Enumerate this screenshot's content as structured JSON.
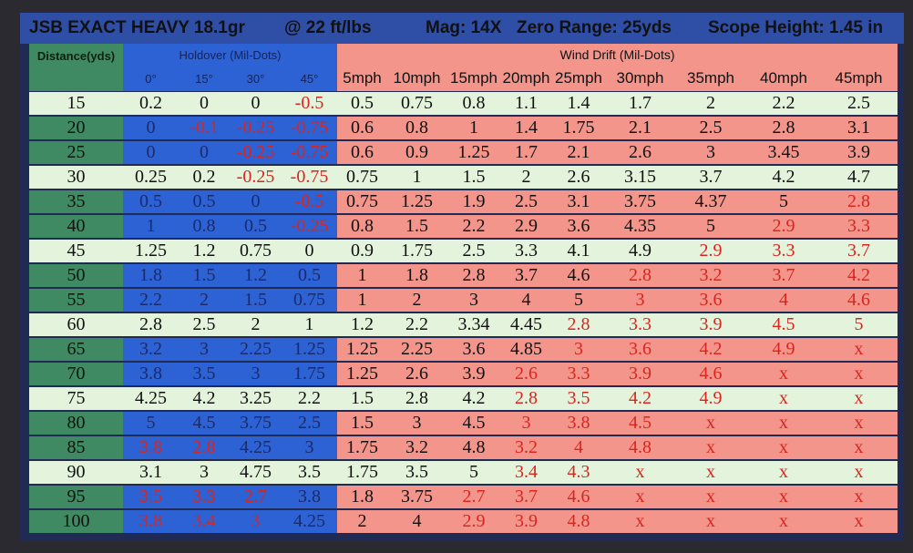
{
  "header": {
    "items": [
      "JSB EXACT HEAVY 18.1gr",
      "@ 22 ft/lbs",
      "Mag: 14X",
      "Zero Range: 25yds",
      "Scope Height: 1.45 in"
    ]
  },
  "columns": {
    "distance": "Distance(yds)",
    "holdover": "Holdover (Mil-Dots)",
    "holdover_angles": [
      "0°",
      "15°",
      "30°",
      "45°"
    ],
    "wind": "Wind Drift (Mil-Dots)",
    "wind_speeds": [
      "5mph",
      "10mph",
      "15mph",
      "20mph",
      "25mph",
      "30mph",
      "35mph",
      "40mph",
      "45mph"
    ]
  },
  "rows": [
    [
      15,
      0.2,
      0,
      0,
      -0.5,
      0.5,
      0.75,
      0.8,
      1.1,
      1.4,
      1.7,
      2,
      2.2,
      2.5
    ],
    [
      20,
      0,
      -0.1,
      -0.25,
      -0.75,
      0.6,
      0.8,
      1,
      1.4,
      1.75,
      2.1,
      2.5,
      2.8,
      3.1
    ],
    [
      25,
      0,
      0,
      -0.25,
      -0.75,
      0.6,
      0.9,
      1.25,
      1.7,
      2.1,
      2.6,
      3,
      3.45,
      3.9
    ],
    [
      30,
      0.25,
      0.2,
      -0.25,
      -0.75,
      0.75,
      1,
      1.5,
      2,
      2.6,
      3.15,
      3.7,
      4.2,
      4.7
    ],
    [
      35,
      0.5,
      0.5,
      0,
      -0.5,
      0.75,
      1.25,
      1.9,
      2.5,
      3.1,
      3.75,
      4.37,
      5,
      2.8
    ],
    [
      40,
      1,
      0.8,
      0.5,
      -0.25,
      0.8,
      1.5,
      2.2,
      2.9,
      3.6,
      4.35,
      5,
      2.9,
      3.3
    ],
    [
      45,
      1.25,
      1.2,
      0.75,
      0,
      0.9,
      1.75,
      2.5,
      3.3,
      4.1,
      4.9,
      2.9,
      3.3,
      3.7
    ],
    [
      50,
      1.8,
      1.5,
      1.2,
      0.5,
      1,
      1.8,
      2.8,
      3.7,
      4.6,
      2.8,
      3.2,
      3.7,
      4.2
    ],
    [
      55,
      2.2,
      2,
      1.5,
      0.75,
      1,
      2,
      3,
      4,
      5,
      3,
      3.6,
      4,
      4.6
    ],
    [
      60,
      2.8,
      2.5,
      2,
      1,
      1.2,
      2.2,
      3.34,
      4.45,
      2.8,
      3.3,
      3.9,
      4.5,
      5
    ],
    [
      65,
      3.2,
      3,
      2.25,
      1.25,
      1.25,
      2.25,
      3.6,
      4.85,
      3,
      3.6,
      4.2,
      4.9,
      "x"
    ],
    [
      70,
      3.8,
      3.5,
      3,
      1.75,
      1.25,
      2.6,
      3.9,
      2.6,
      3.3,
      3.9,
      4.6,
      "x",
      "x"
    ],
    [
      75,
      4.25,
      4.2,
      3.25,
      2.2,
      1.5,
      2.8,
      4.2,
      2.8,
      3.5,
      4.2,
      4.9,
      "x",
      "x"
    ],
    [
      80,
      5,
      4.5,
      3.75,
      2.5,
      1.5,
      3,
      4.5,
      3,
      3.8,
      4.5,
      "x",
      "x",
      "x"
    ],
    [
      85,
      3.8,
      2.8,
      4.25,
      3,
      1.75,
      3.2,
      4.8,
      3.2,
      4,
      4.8,
      "x",
      "x",
      "x"
    ],
    [
      90,
      3.1,
      3,
      4.75,
      3.5,
      1.75,
      3.5,
      5,
      3.4,
      4.3,
      "x",
      "x",
      "x",
      "x"
    ],
    [
      95,
      3.5,
      3.3,
      2.7,
      3.8,
      1.8,
      3.75,
      2.7,
      3.7,
      4.6,
      "x",
      "x",
      "x",
      "x"
    ],
    [
      100,
      3.8,
      3.4,
      3,
      4.25,
      2,
      4,
      2.9,
      3.9,
      4.8,
      "x",
      "x",
      "x",
      "x"
    ]
  ]
}
